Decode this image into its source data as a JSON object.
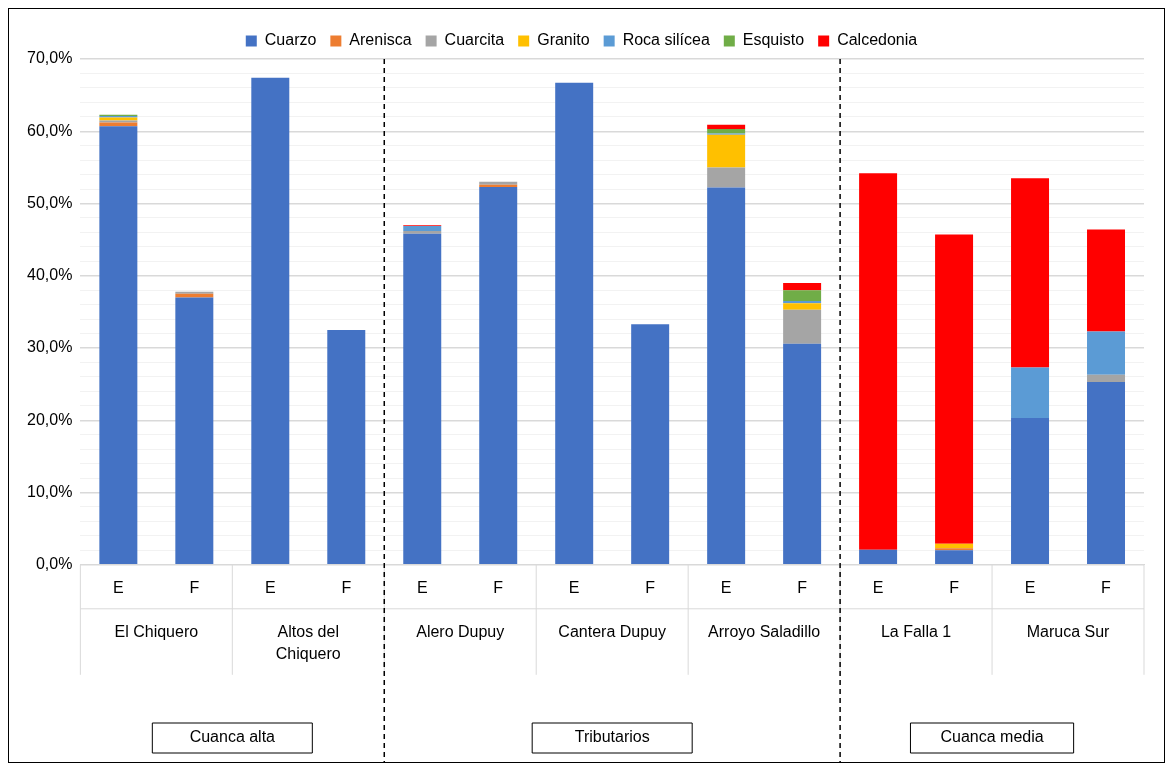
{
  "chart_data": {
    "type": "bar",
    "stacked": true,
    "legend": "top",
    "grid": "y",
    "categories": [
      "E",
      "F",
      "E",
      "F",
      "E",
      "F",
      "E",
      "F",
      "E",
      "F",
      "E",
      "F",
      "E",
      "F"
    ],
    "series": [
      {
        "name": "Cuarzo",
        "color": "#4472c4",
        "values": [
          60.7,
          37.0,
          67.4,
          32.5,
          45.8,
          52.3,
          66.7,
          33.3,
          52.2,
          30.6,
          2.1,
          2.0,
          20.3,
          25.3
        ]
      },
      {
        "name": "Arenisca",
        "color": "#ed7d31",
        "values": [
          0.5,
          0.5,
          0,
          0,
          0,
          0.3,
          0,
          0,
          0,
          0,
          0,
          0.3,
          0,
          0
        ]
      },
      {
        "name": "Cuarcita",
        "color": "#a5a5a5",
        "values": [
          0.3,
          0.3,
          0,
          0,
          0.4,
          0.4,
          0,
          0,
          2.8,
          4.7,
          0,
          0,
          0,
          1.0
        ]
      },
      {
        "name": "Granito",
        "color": "#ffc000",
        "values": [
          0.4,
          0,
          0,
          0,
          0,
          0,
          0,
          0,
          4.5,
          0.9,
          0,
          0.6,
          0,
          0
        ]
      },
      {
        "name": "Roca silícea",
        "color": "#5b9bd5",
        "values": [
          0.2,
          0,
          0,
          0,
          0.7,
          0,
          0,
          0,
          0.2,
          0.3,
          0,
          0,
          7.0,
          6.0
        ]
      },
      {
        "name": "Esquisto",
        "color": "#70ad47",
        "values": [
          0.2,
          0,
          0,
          0,
          0,
          0,
          0,
          0,
          0.6,
          1.5,
          0,
          0,
          0,
          0
        ]
      },
      {
        "name": "Calcedonia",
        "color": "#ff0000",
        "values": [
          0,
          0,
          0,
          0,
          0.1,
          0,
          0,
          0,
          0.6,
          1.0,
          52.1,
          42.8,
          26.2,
          14.1
        ]
      }
    ],
    "ylim": [
      0,
      70
    ],
    "yticks": [
      {
        "value": 0,
        "label": "0,0%"
      },
      {
        "value": 2,
        "label": null
      },
      {
        "value": 4,
        "label": null
      },
      {
        "value": 6,
        "label": null
      },
      {
        "value": 8,
        "label": null
      },
      {
        "value": 10,
        "label": "10,0%"
      },
      {
        "value": 12,
        "label": null
      },
      {
        "value": 14,
        "label": null
      },
      {
        "value": 16,
        "label": null
      },
      {
        "value": 18,
        "label": null
      },
      {
        "value": 20,
        "label": "20,0%"
      },
      {
        "value": 22,
        "label": null
      },
      {
        "value": 24,
        "label": null
      },
      {
        "value": 26,
        "label": null
      },
      {
        "value": 28,
        "label": null
      },
      {
        "value": 30,
        "label": "30,0%"
      },
      {
        "value": 32,
        "label": null
      },
      {
        "value": 34,
        "label": null
      },
      {
        "value": 36,
        "label": null
      },
      {
        "value": 38,
        "label": null
      },
      {
        "value": 40,
        "label": "40,0%"
      },
      {
        "value": 42,
        "label": null
      },
      {
        "value": 44,
        "label": null
      },
      {
        "value": 46,
        "label": null
      },
      {
        "value": 48,
        "label": null
      },
      {
        "value": 50,
        "label": "50,0%"
      },
      {
        "value": 52,
        "label": null
      },
      {
        "value": 54,
        "label": null
      },
      {
        "value": 56,
        "label": null
      },
      {
        "value": 58,
        "label": null
      },
      {
        "value": 60,
        "label": "60,0%"
      },
      {
        "value": 62,
        "label": null
      },
      {
        "value": 64,
        "label": null
      },
      {
        "value": 66,
        "label": null
      },
      {
        "value": 68,
        "label": null
      },
      {
        "value": 70,
        "label": "70,0%"
      }
    ],
    "annotations": [
      "El Chiquero",
      "Altos del Chiquero",
      "Alero Dupuy",
      "Cantera Dupuy",
      "Arroyo Saladillo",
      "La Falla 1",
      "Maruca Sur",
      "Cuanca alta",
      "Tributarios",
      "Cuanca media"
    ]
  }
}
